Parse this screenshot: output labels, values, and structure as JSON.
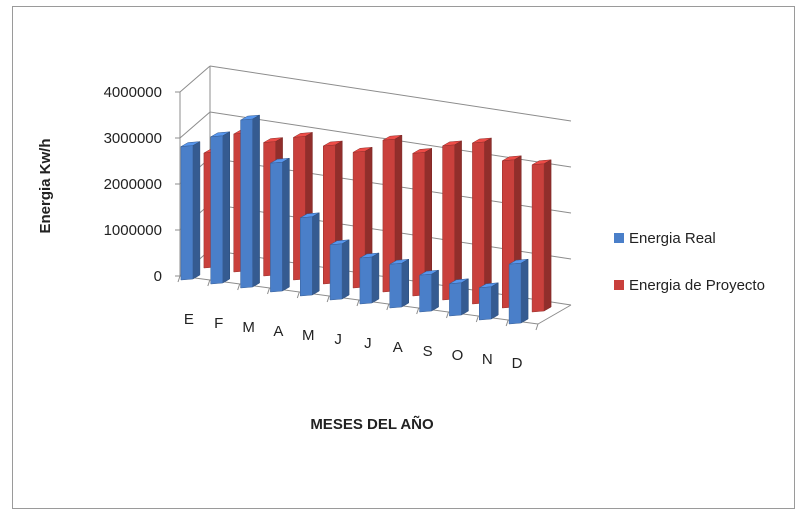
{
  "chart_data": {
    "type": "bar",
    "xlabel": "MESES DEL AÑO",
    "ylabel": "Energia Kw/h",
    "categories": [
      "E",
      "F",
      "M",
      "A",
      "M",
      "J",
      "J",
      "A",
      "S",
      "O",
      "N",
      "D"
    ],
    "yticks": [
      "0",
      "1000000",
      "2000000",
      "3000000",
      "4000000"
    ],
    "ylim": [
      0,
      4000000
    ],
    "grid": true,
    "legend_position": "right",
    "series": [
      {
        "name": "Energia Real",
        "color": "#4a7fc9",
        "values": [
          2900000,
          3200000,
          3650000,
          2800000,
          1700000,
          1200000,
          1000000,
          950000,
          800000,
          700000,
          700000,
          1300000
        ]
      },
      {
        "name": "Energia de Proyecto",
        "color": "#c9403c",
        "values": [
          2500000,
          3000000,
          2900000,
          3100000,
          3000000,
          2950000,
          3300000,
          3100000,
          3350000,
          3500000,
          3200000,
          3200000
        ]
      }
    ]
  }
}
